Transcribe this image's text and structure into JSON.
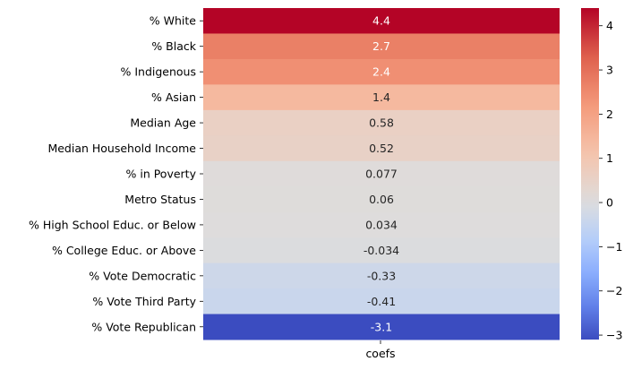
{
  "chart_data": {
    "type": "heatmap",
    "colormap": "coolwarm",
    "columns": [
      "coefs"
    ],
    "rows": [
      "% White",
      "% Black",
      "% Indigenous",
      "% Asian",
      "Median Age",
      "Median Household Income",
      "% in Poverty",
      "Metro Status",
      "% High School Educ. or Below",
      "% College Educ. or Above",
      "% Vote Democratic",
      "% Vote Third Party",
      "% Vote Republican"
    ],
    "values": [
      4.4,
      2.7,
      2.4,
      1.4,
      0.58,
      0.52,
      0.077,
      0.06,
      0.034,
      -0.034,
      -0.33,
      -0.41,
      -3.1
    ],
    "value_labels": [
      "4.4",
      "2.7",
      "2.4",
      "1.4",
      "0.58",
      "0.52",
      "0.077",
      "0.06",
      "0.034",
      "-0.034",
      "-0.33",
      "-0.41",
      "-3.1"
    ],
    "colorbar": {
      "vmin": -3.1,
      "vmax": 4.4,
      "center": 0,
      "ticks": [
        4,
        3,
        2,
        1,
        0,
        -1,
        -2,
        -3
      ],
      "tick_labels": [
        "4",
        "3",
        "2",
        "1",
        "0",
        "−1",
        "−2",
        "−3"
      ]
    }
  }
}
